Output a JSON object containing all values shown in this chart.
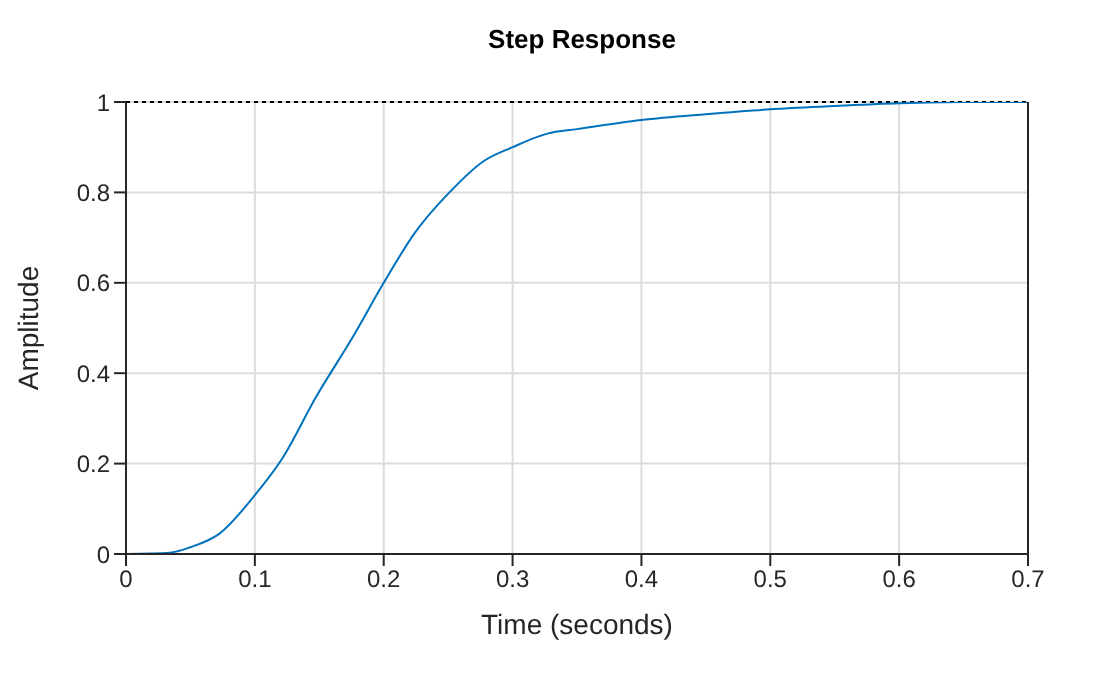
{
  "chart_data": {
    "type": "line",
    "title": "Step Response",
    "xlabel": "Time (seconds)",
    "ylabel": "Amplitude",
    "x": [
      0,
      0.034,
      0.05,
      0.072,
      0.1,
      0.121,
      0.148,
      0.176,
      0.2,
      0.224,
      0.251,
      0.278,
      0.3,
      0.327,
      0.35,
      0.4,
      0.45,
      0.5,
      0.55,
      0.6,
      0.65,
      0.7
    ],
    "series": [
      {
        "color": "#0072bd",
        "values": [
          0,
          0.003,
          0.015,
          0.044,
          0.13,
          0.21,
          0.35,
          0.48,
          0.6,
          0.71,
          0.8,
          0.87,
          0.9,
          0.93,
          0.94,
          0.96,
          0.973,
          0.984,
          0.991,
          0.997,
          1.0,
          1.0
        ]
      }
    ],
    "xlim": [
      0,
      0.7
    ],
    "xticks": [
      0,
      0.1,
      0.2,
      0.3,
      0.4,
      0.5,
      0.6,
      0.7
    ],
    "ylim": [
      0,
      1
    ],
    "yticks": [
      0,
      0.2,
      0.4,
      0.6,
      0.8,
      1
    ],
    "ref_lines": [
      {
        "axis": "y",
        "value": 1,
        "color": "#000000",
        "line_style": "dotted"
      }
    ],
    "grid": true,
    "marker": "none",
    "line_style": "solid"
  }
}
